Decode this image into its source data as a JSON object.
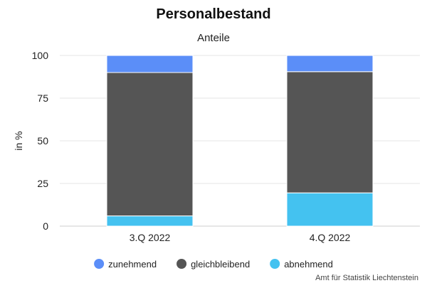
{
  "chart_data": {
    "type": "bar",
    "stacked": true,
    "title": "Personalbestand",
    "subtitle": "Anteile",
    "xlabel": "",
    "ylabel": "in %",
    "ylim": [
      0,
      100
    ],
    "yticks": [
      0,
      25,
      50,
      75,
      100
    ],
    "grid": true,
    "legend_position": "bottom",
    "categories": [
      "3.Q 2022",
      "4.Q 2022"
    ],
    "series": [
      {
        "name": "abnehmend",
        "color": "#44c2f0",
        "values": [
          6,
          19.5
        ]
      },
      {
        "name": "gleichbleibend",
        "color": "#555555",
        "values": [
          84,
          71
        ]
      },
      {
        "name": "zunehmend",
        "color": "#5b8ef8",
        "values": [
          10,
          9.5
        ]
      }
    ],
    "legend_order": [
      "zunehmend",
      "gleichbleibend",
      "abnehmend"
    ],
    "credit": "Amt für Statistik Liechtenstein"
  }
}
